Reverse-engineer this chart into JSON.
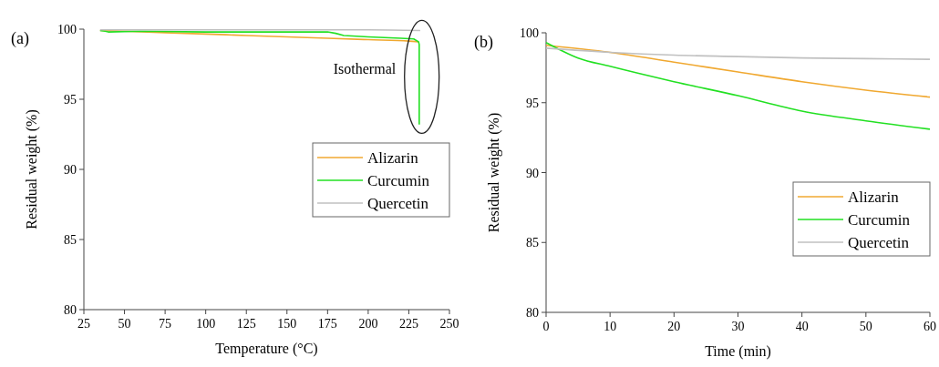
{
  "chart_data": [
    {
      "type": "line",
      "title": "(a)",
      "xlabel": "Temperature (°C)",
      "ylabel": "Residual weight (%)",
      "xlim": [
        25,
        250
      ],
      "xticks": [
        25,
        50,
        75,
        100,
        125,
        150,
        175,
        200,
        225,
        250
      ],
      "ylim": [
        80,
        100
      ],
      "yticks": [
        80,
        85,
        90,
        95,
        100
      ],
      "grid": false,
      "legend": "right",
      "annotations": [
        "Isothermal"
      ],
      "series": [
        {
          "name": "Alizarin",
          "color": "#f0a830",
          "x": [
            35,
            50,
            75,
            100,
            125,
            150,
            175,
            200,
            225,
            231
          ],
          "values": [
            99.9,
            99.85,
            99.75,
            99.65,
            99.55,
            99.45,
            99.35,
            99.25,
            99.15,
            99.1
          ]
        },
        {
          "name": "Curcumin",
          "color": "#22e022",
          "x": [
            35,
            38,
            40,
            60,
            100,
            150,
            175,
            180,
            185,
            200,
            220,
            228,
            231,
            231.4,
            231.4
          ],
          "values": [
            99.9,
            99.85,
            99.8,
            99.85,
            99.8,
            99.8,
            99.8,
            99.7,
            99.55,
            99.45,
            99.35,
            99.3,
            99.1,
            98.9,
            93.2
          ]
        },
        {
          "name": "Quercetin",
          "color": "#c0c0c0",
          "x": [
            35,
            100,
            150,
            200,
            232
          ],
          "values": [
            99.95,
            99.95,
            99.95,
            99.95,
            99.9
          ]
        }
      ]
    },
    {
      "type": "line",
      "title": "(b)",
      "xlabel": "Time (min)",
      "ylabel": "Residual weight (%)",
      "xlim": [
        0,
        60
      ],
      "xticks": [
        0,
        10,
        20,
        30,
        40,
        50,
        60
      ],
      "ylim": [
        80,
        100
      ],
      "yticks": [
        80,
        85,
        90,
        95,
        100
      ],
      "grid": false,
      "legend": "right",
      "series": [
        {
          "name": "Alizarin",
          "color": "#f0a830",
          "x": [
            0,
            10,
            20,
            30,
            40,
            50,
            60
          ],
          "values": [
            99.1,
            98.6,
            97.9,
            97.2,
            96.5,
            95.9,
            95.4
          ]
        },
        {
          "name": "Curcumin",
          "color": "#22e022",
          "x": [
            0,
            5,
            10,
            20,
            30,
            40,
            50,
            60
          ],
          "values": [
            99.3,
            98.2,
            97.6,
            96.5,
            95.5,
            94.4,
            93.7,
            93.1
          ]
        },
        {
          "name": "Quercetin",
          "color": "#c0c0c0",
          "x": [
            0,
            10,
            20,
            30,
            40,
            50,
            60
          ],
          "values": [
            98.9,
            98.6,
            98.4,
            98.3,
            98.2,
            98.15,
            98.1
          ]
        }
      ]
    }
  ]
}
